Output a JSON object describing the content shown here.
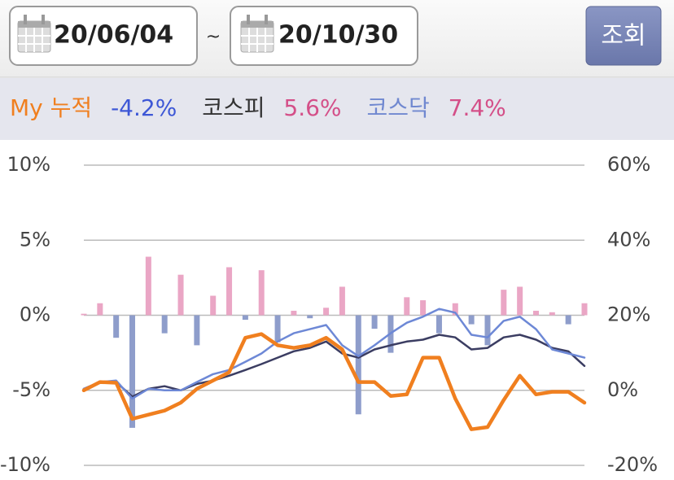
{
  "header": {
    "start_date": "20/06/04",
    "separator": "~",
    "end_date": "20/10/30",
    "button": "조회"
  },
  "summary": {
    "my_value": "-4.2%",
    "kospi_value": "5.6%",
    "kosdaq_value": "7.4%"
  },
  "chart_data": {
    "type": "combo",
    "ylim": [
      -10,
      10
    ],
    "yticks": [
      {
        "value": 10,
        "label": "10%"
      },
      {
        "value": 5,
        "label": "5%"
      },
      {
        "value": 0,
        "label": "0%"
      },
      {
        "value": -5,
        "label": "-5%"
      },
      {
        "value": -10,
        "label": "-10%"
      }
    ],
    "y2lim": [
      -20,
      60
    ],
    "y2ticks": [
      {
        "value": 60,
        "label": "60%"
      },
      {
        "value": 40,
        "label": "40%"
      },
      {
        "value": 20,
        "label": "20%"
      },
      {
        "value": 0,
        "label": "0%"
      },
      {
        "value": -20,
        "label": "-20%"
      }
    ],
    "grid": true,
    "series": [
      {
        "type": "bar",
        "color": "#eaa6c5",
        "negative_color": "#8e9dcb",
        "values": [
          0.1,
          0.8,
          -1.5,
          -7.5,
          3.9,
          -1.2,
          2.7,
          -2.0,
          1.3,
          3.2,
          -0.3,
          3.0,
          -1.8,
          0.3,
          -0.2,
          0.5,
          1.9,
          -6.6,
          -0.9,
          -2.5,
          1.2,
          1.0,
          -1.2,
          0.8,
          -0.6,
          -2.0,
          1.7,
          1.9,
          0.3,
          0.2,
          -0.6,
          0.8
        ]
      },
      {
        "type": "line",
        "name": "코스피",
        "color": "#3b3d62",
        "axis": "y2",
        "values": [
          0.4,
          2.2,
          2.2,
          -1.7,
          0.4,
          1.1,
          0,
          1.7,
          2.6,
          3.9,
          5.4,
          7,
          8.7,
          10.4,
          11.3,
          13,
          9.8,
          8.7,
          10.9,
          12,
          13,
          13.5,
          14.8,
          14.1,
          10.9,
          11.3,
          14.1,
          14.8,
          13.5,
          11.3,
          10.4,
          6.5
        ]
      },
      {
        "type": "line",
        "name": "코스닥",
        "color": "#6d88d6",
        "axis": "y2",
        "values": [
          0.4,
          2.2,
          2.6,
          -2.2,
          0.4,
          0,
          0,
          2.2,
          4.3,
          5.4,
          7.6,
          9.8,
          13,
          15.2,
          16.3,
          17.4,
          12,
          9.1,
          12,
          15.2,
          18,
          19.6,
          21.7,
          20.7,
          14.8,
          14.1,
          18.5,
          19.6,
          16.3,
          10.9,
          9.8,
          8.7
        ]
      },
      {
        "type": "line",
        "name": "My 누적",
        "color": "#f07f1f",
        "axis": "y2",
        "values": [
          0,
          2.2,
          2,
          -7.6,
          -6.5,
          -5.4,
          -3.3,
          0.4,
          2.6,
          4.8,
          14,
          15,
          12,
          11.3,
          12,
          14,
          10.9,
          2.2,
          2.2,
          -1.5,
          -1.1,
          8.7,
          8.7,
          -2.2,
          -10.4,
          -9.8,
          -2.6,
          3.9,
          -1.1,
          -0.4,
          -0.4,
          -3.3
        ]
      }
    ]
  }
}
